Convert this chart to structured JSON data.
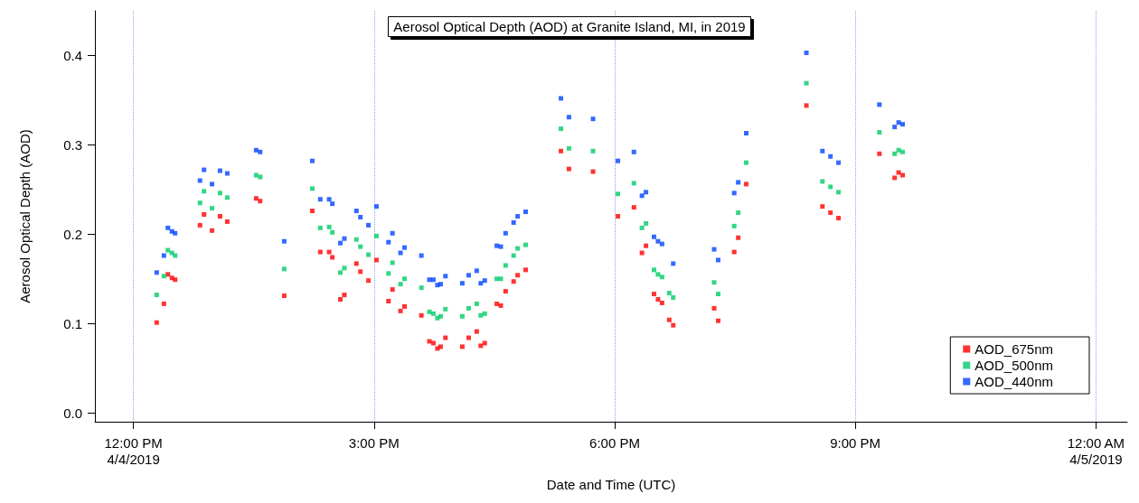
{
  "chart_data": {
    "type": "scatter",
    "title": "Aerosol Optical Depth (AOD) at Granite Island, MI, in 2019",
    "xlabel": "Date and Time (UTC)",
    "ylabel": "Aerosol Optical Depth (AOD)",
    "x": [
      12.29,
      12.38,
      12.43,
      12.48,
      12.52,
      12.83,
      12.88,
      12.98,
      13.08,
      13.17,
      13.53,
      13.58,
      13.88,
      14.23,
      14.33,
      14.44,
      14.48,
      14.58,
      14.63,
      14.78,
      14.83,
      14.93,
      15.03,
      15.18,
      15.23,
      15.33,
      15.38,
      15.59,
      15.69,
      15.74,
      15.79,
      15.83,
      15.89,
      16.1,
      16.18,
      16.28,
      16.33,
      16.38,
      16.53,
      16.58,
      16.64,
      16.74,
      16.79,
      16.89,
      17.33,
      17.43,
      17.73,
      18.04,
      18.24,
      18.34,
      18.39,
      18.49,
      18.54,
      18.59,
      18.68,
      18.73,
      19.24,
      19.29,
      19.49,
      19.54,
      19.64,
      20.39,
      20.59,
      20.69,
      20.79,
      21.3,
      21.49,
      21.54,
      21.59
    ],
    "series": [
      {
        "name": "AOD_675nm",
        "color": "#ff0000",
        "values": [
          0.101,
          0.122,
          0.155,
          0.151,
          0.149,
          0.21,
          0.222,
          0.204,
          0.22,
          0.214,
          0.24,
          0.237,
          0.131,
          0.226,
          0.18,
          0.18,
          0.174,
          0.127,
          0.132,
          0.167,
          0.158,
          0.148,
          0.171,
          0.125,
          0.138,
          0.114,
          0.119,
          0.109,
          0.08,
          0.078,
          0.072,
          0.074,
          0.084,
          0.074,
          0.084,
          0.091,
          0.075,
          0.078,
          0.122,
          0.12,
          0.136,
          0.147,
          0.154,
          0.16,
          0.293,
          0.273,
          0.27,
          0.22,
          0.23,
          0.179,
          0.187,
          0.133,
          0.127,
          0.123,
          0.104,
          0.098,
          0.117,
          0.103,
          0.18,
          0.196,
          0.256,
          0.344,
          0.231,
          0.224,
          0.218,
          0.29,
          0.263,
          0.269,
          0.266
        ]
      },
      {
        "name": "AOD_500nm",
        "color": "#00cc66",
        "values": [
          0.132,
          0.153,
          0.182,
          0.179,
          0.176,
          0.235,
          0.248,
          0.229,
          0.246,
          0.241,
          0.266,
          0.264,
          0.161,
          0.251,
          0.207,
          0.208,
          0.202,
          0.157,
          0.162,
          0.194,
          0.186,
          0.177,
          0.198,
          0.156,
          0.168,
          0.144,
          0.15,
          0.14,
          0.113,
          0.111,
          0.106,
          0.108,
          0.116,
          0.108,
          0.117,
          0.122,
          0.109,
          0.111,
          0.15,
          0.15,
          0.165,
          0.176,
          0.184,
          0.188,
          0.318,
          0.296,
          0.293,
          0.245,
          0.257,
          0.207,
          0.212,
          0.16,
          0.155,
          0.152,
          0.134,
          0.129,
          0.146,
          0.133,
          0.209,
          0.224,
          0.28,
          0.369,
          0.259,
          0.253,
          0.247,
          0.314,
          0.29,
          0.294,
          0.292
        ]
      },
      {
        "name": "AOD_440nm",
        "color": "#0044ff",
        "values": [
          0.157,
          0.176,
          0.207,
          0.203,
          0.201,
          0.26,
          0.272,
          0.256,
          0.271,
          0.268,
          0.294,
          0.292,
          0.192,
          0.282,
          0.239,
          0.239,
          0.234,
          0.19,
          0.195,
          0.226,
          0.219,
          0.21,
          0.231,
          0.191,
          0.201,
          0.179,
          0.185,
          0.176,
          0.149,
          0.149,
          0.143,
          0.144,
          0.153,
          0.145,
          0.154,
          0.159,
          0.145,
          0.148,
          0.187,
          0.186,
          0.201,
          0.213,
          0.22,
          0.225,
          0.352,
          0.331,
          0.329,
          0.282,
          0.292,
          0.243,
          0.247,
          0.197,
          0.192,
          0.189,
          null,
          0.167,
          0.183,
          0.171,
          0.246,
          0.258,
          0.313,
          0.403,
          0.293,
          0.287,
          0.28,
          0.345,
          0.32,
          0.325,
          0.323
        ]
      }
    ],
    "xlim": [
      11.52,
      24.39
    ],
    "xticks": [
      {
        "value": 12,
        "label": "12:00 PM\n4/4/2019"
      },
      {
        "value": 15,
        "label": "3:00 PM"
      },
      {
        "value": 18,
        "label": "6:00 PM"
      },
      {
        "value": 21,
        "label": "9:00 PM"
      },
      {
        "value": 24,
        "label": "12:00 AM\n4/5/2019"
      }
    ],
    "ylim": [
      -0.01,
      0.45
    ],
    "yticks": [
      {
        "value": 0,
        "label": "0.0"
      },
      {
        "value": 0.1,
        "label": "0.1"
      },
      {
        "value": 0.2,
        "label": "0.2"
      },
      {
        "value": 0.3,
        "label": "0.3"
      },
      {
        "value": 0.4,
        "label": "0.4"
      }
    ],
    "grid": "x",
    "legend": "bottom right",
    "marker": "square"
  }
}
